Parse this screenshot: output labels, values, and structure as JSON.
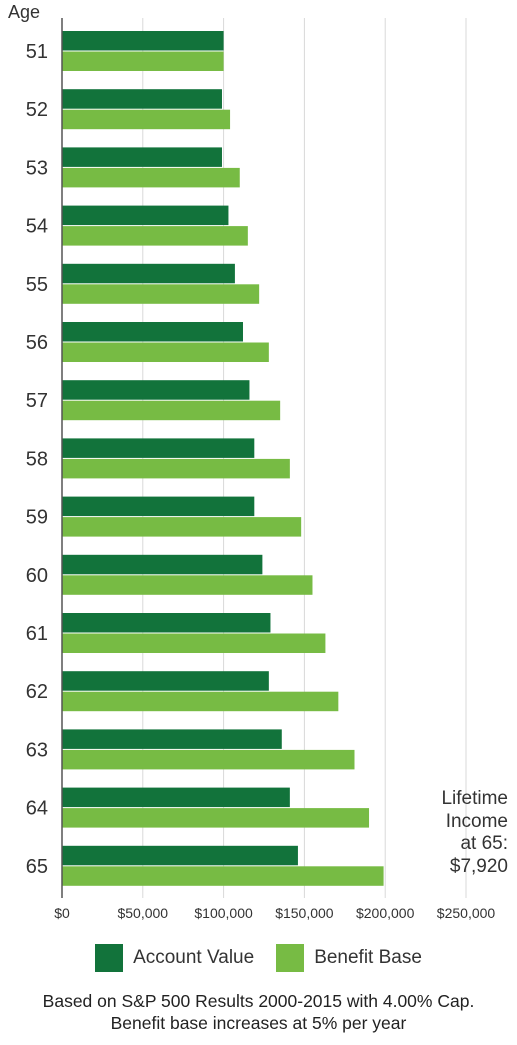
{
  "chart_data": {
    "type": "bar",
    "orientation": "horizontal",
    "ylabel": "Age",
    "categories": [
      "51",
      "52",
      "53",
      "54",
      "55",
      "56",
      "57",
      "58",
      "59",
      "60",
      "61",
      "62",
      "63",
      "64",
      "65"
    ],
    "series": [
      {
        "name": "Account Value",
        "color": "#12733b",
        "values": [
          100000,
          99000,
          99000,
          103000,
          107000,
          112000,
          116000,
          119000,
          119000,
          124000,
          129000,
          128000,
          136000,
          141000,
          146000
        ]
      },
      {
        "name": "Benefit Base",
        "color": "#77bb44",
        "values": [
          100000,
          104000,
          110000,
          115000,
          122000,
          128000,
          135000,
          141000,
          148000,
          155000,
          163000,
          171000,
          181000,
          190000,
          199000
        ]
      }
    ],
    "xlim": [
      0,
      250000
    ],
    "xticks": [
      0,
      50000,
      100000,
      150000,
      200000,
      250000
    ],
    "xtick_labels": [
      "$0",
      "$50,000",
      "$100,000",
      "$150,000",
      "$200,000",
      "$250,000"
    ],
    "grid": true,
    "legend_position": "bottom",
    "annotation": [
      "Lifetime",
      "Income",
      "at 65:",
      "$7,920"
    ]
  },
  "footnote": {
    "line1": "Based on S&P 500 Results 2000-2015 with 4.00% Cap.",
    "line2": "Benefit base increases at 5% per year"
  }
}
